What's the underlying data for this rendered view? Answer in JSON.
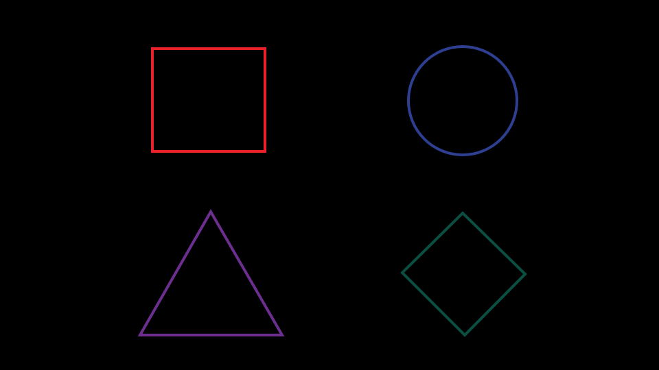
{
  "background": "#000000",
  "shapes": [
    {
      "kind": "square",
      "color": "#e8212b"
    },
    {
      "kind": "circle",
      "color": "#2e3f91"
    },
    {
      "kind": "triangle",
      "color": "#6c2f90"
    },
    {
      "kind": "diamond",
      "color": "#0b4f42"
    }
  ]
}
